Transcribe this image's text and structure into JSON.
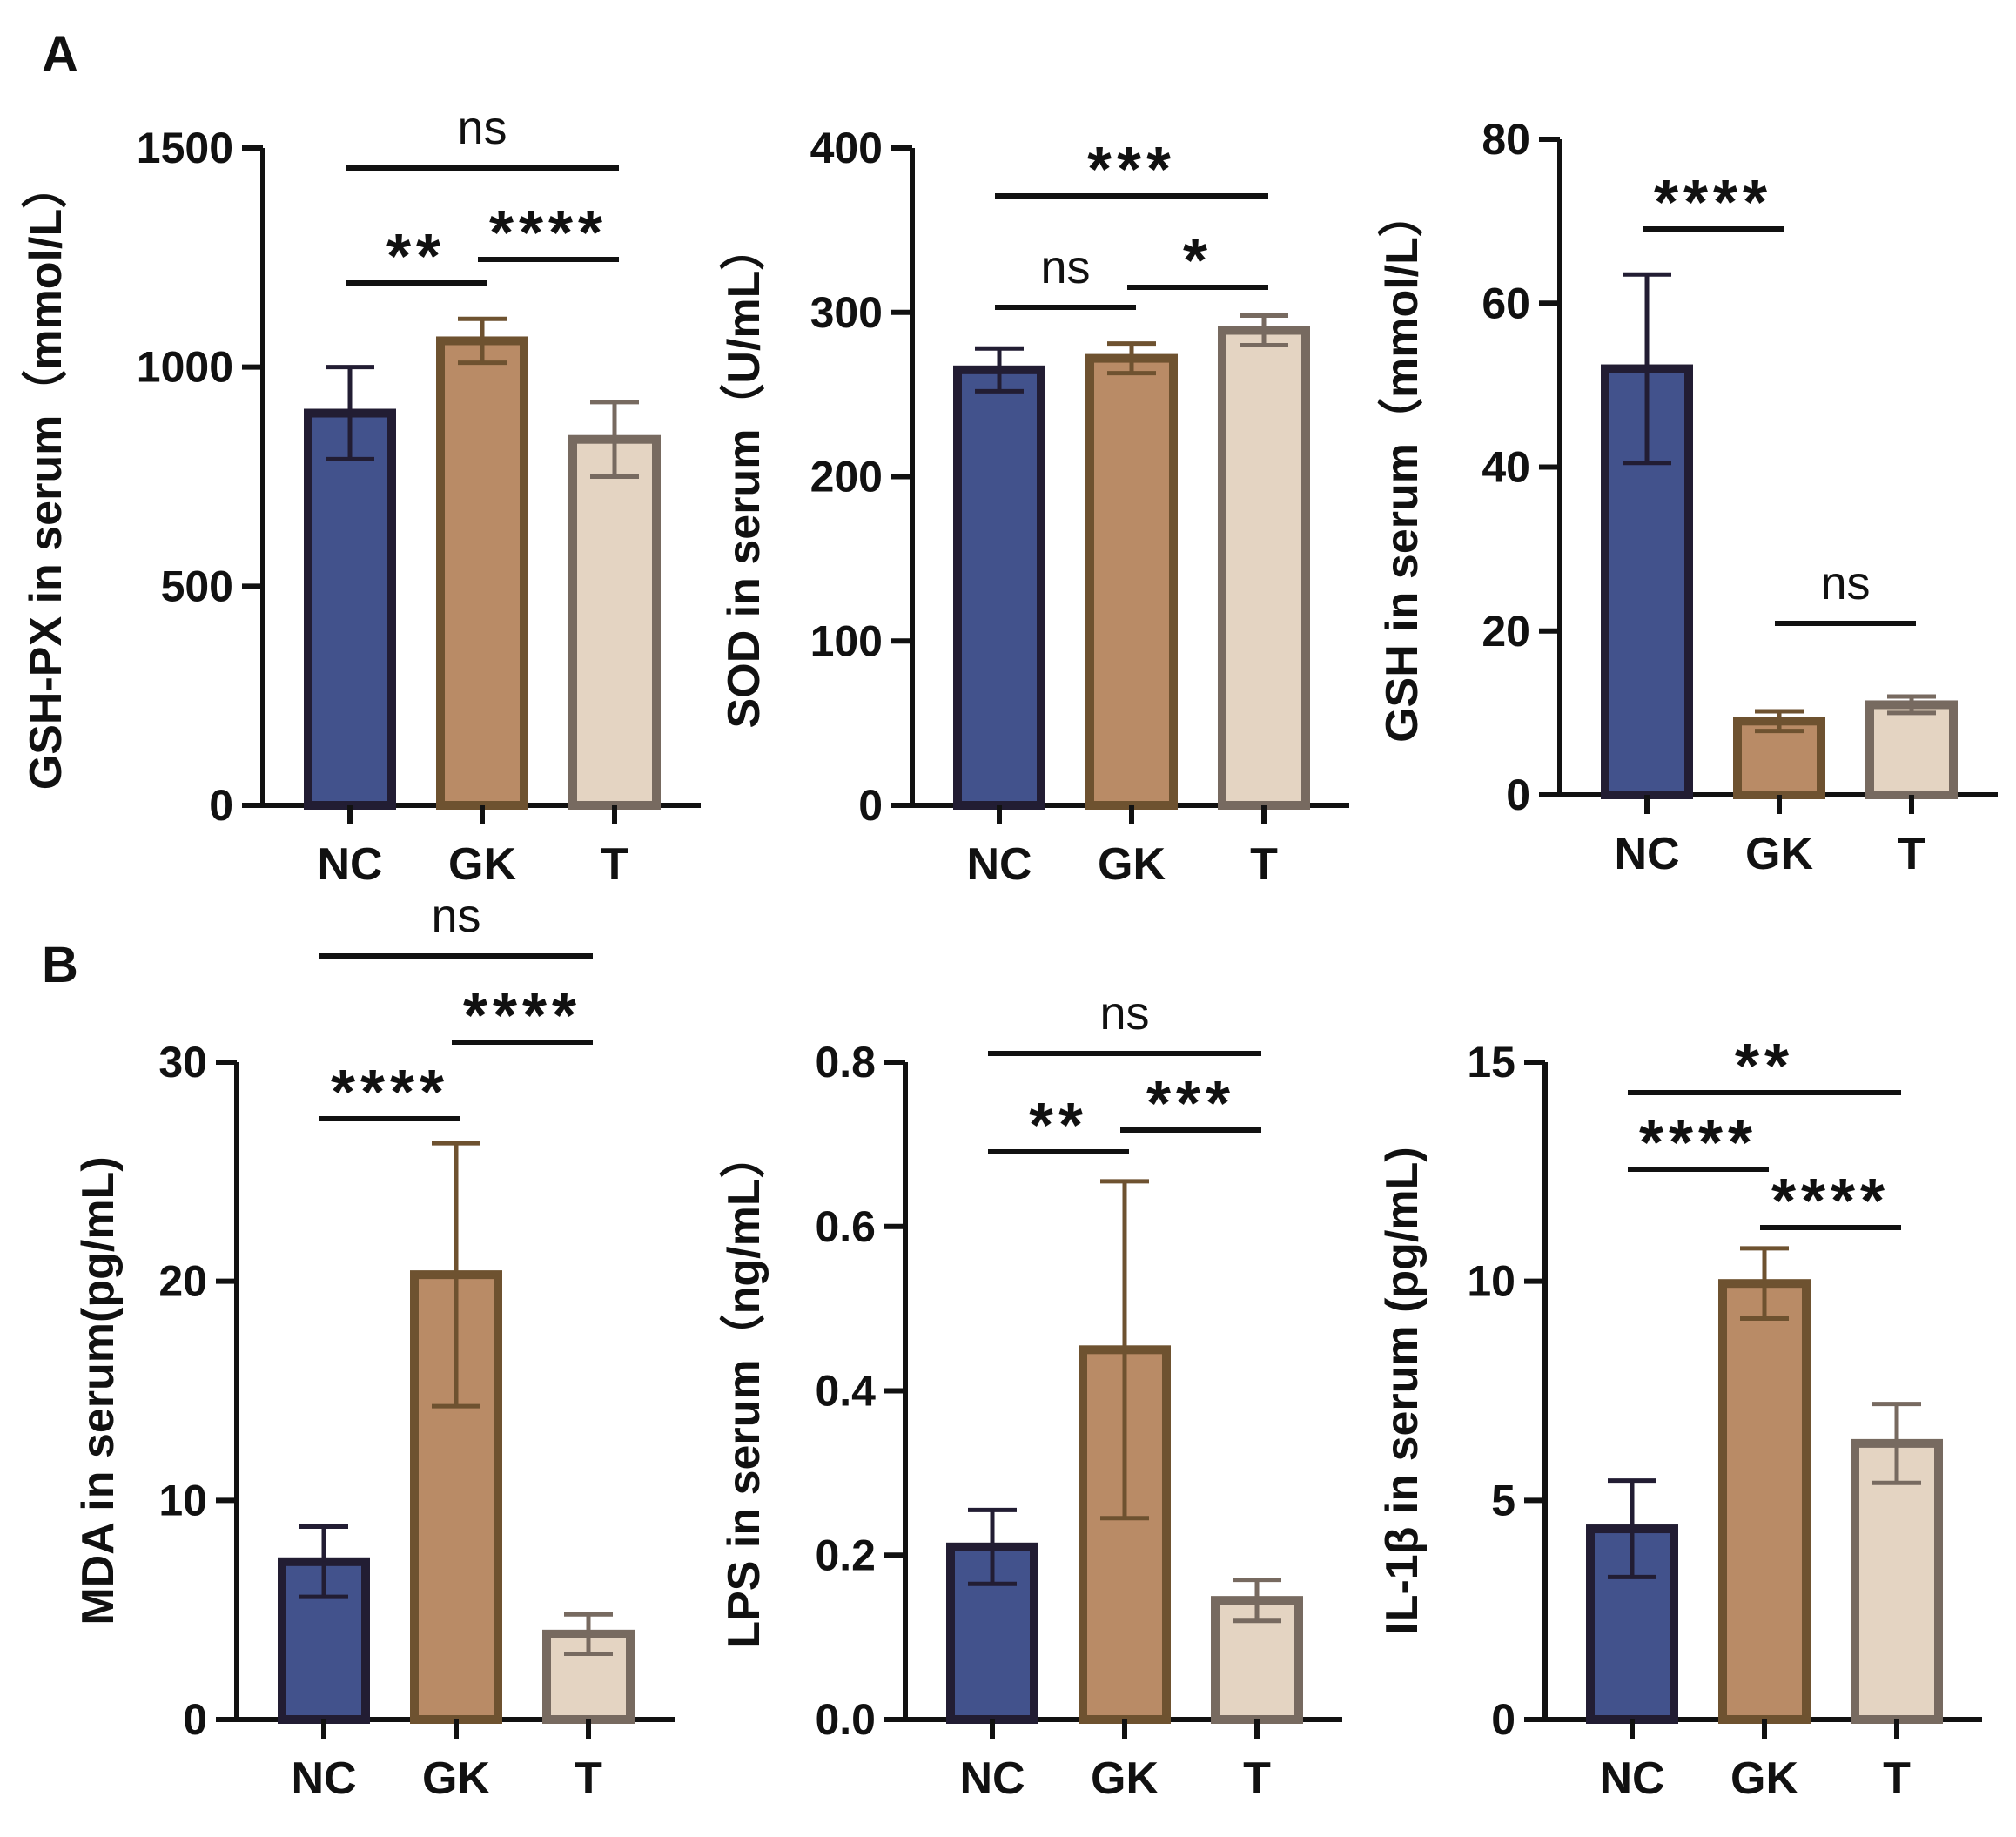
{
  "panels": [
    {
      "label": "A"
    },
    {
      "label": "B"
    }
  ],
  "colors": {
    "NC": {
      "fill": "#42528c",
      "stroke": "#221d33"
    },
    "GK": {
      "fill": "#b98b66",
      "stroke": "#6e5230"
    },
    "T": {
      "fill": "#e4d4c2",
      "stroke": "#776a60"
    },
    "axis": "#111111"
  },
  "chart_data": [
    {
      "type": "bar",
      "ylabel": "GSH-PX in serum（mmol/L）",
      "categories": [
        "NC",
        "GK",
        "T"
      ],
      "values": [
        895,
        1060,
        835
      ],
      "errors": [
        105,
        50,
        85
      ],
      "ylim": [
        0,
        1500
      ],
      "yticks": [
        0,
        500,
        1000,
        1500
      ],
      "significance": [
        {
          "from": "NC",
          "to": "GK",
          "label": "**"
        },
        {
          "from": "GK",
          "to": "T",
          "label": "****"
        },
        {
          "from": "NC",
          "to": "T",
          "label": "ns"
        }
      ]
    },
    {
      "type": "bar",
      "ylabel": "SOD in serum（U/mL）",
      "categories": [
        "NC",
        "GK",
        "T"
      ],
      "values": [
        265,
        272,
        289
      ],
      "errors": [
        13,
        9,
        9
      ],
      "ylim": [
        0,
        400
      ],
      "yticks": [
        0,
        100,
        200,
        300,
        400
      ],
      "significance": [
        {
          "from": "NC",
          "to": "GK",
          "label": "ns"
        },
        {
          "from": "GK",
          "to": "T",
          "label": "*"
        },
        {
          "from": "NC",
          "to": "T",
          "label": "***"
        }
      ]
    },
    {
      "type": "bar",
      "ylabel": "GSH in serum（mmol/L）",
      "categories": [
        "NC",
        "GK",
        "T"
      ],
      "values": [
        52,
        9,
        11
      ],
      "errors": [
        11.5,
        1.2,
        1.0
      ],
      "ylim": [
        0,
        80
      ],
      "yticks": [
        0,
        20,
        40,
        60,
        80
      ],
      "significance": [
        {
          "from": "NC",
          "to": "GK",
          "label": "****"
        },
        {
          "from": "GK",
          "to": "T",
          "label": "ns"
        }
      ]
    },
    {
      "type": "bar",
      "ylabel": "MDA in serum(pg/mL)",
      "categories": [
        "NC",
        "GK",
        "T"
      ],
      "values": [
        7.2,
        20.3,
        3.9
      ],
      "errors": [
        1.6,
        6.0,
        0.9
      ],
      "ylim": [
        0,
        30
      ],
      "yticks": [
        0,
        10,
        20,
        30
      ],
      "significance": [
        {
          "from": "NC",
          "to": "GK",
          "label": "****"
        },
        {
          "from": "GK",
          "to": "T",
          "label": "****"
        },
        {
          "from": "NC",
          "to": "T",
          "label": "ns"
        }
      ]
    },
    {
      "type": "bar",
      "ylabel": "LPS in serum（ng/mL）",
      "categories": [
        "NC",
        "GK",
        "T"
      ],
      "values": [
        0.21,
        0.45,
        0.145
      ],
      "errors": [
        0.045,
        0.205,
        0.025
      ],
      "ylim": [
        0,
        0.8
      ],
      "yticks": [
        "0.0",
        "0.2",
        "0.4",
        "0.6",
        "0.8"
      ],
      "significance": [
        {
          "from": "NC",
          "to": "GK",
          "label": "**"
        },
        {
          "from": "GK",
          "to": "T",
          "label": "***"
        },
        {
          "from": "NC",
          "to": "T",
          "label": "ns"
        }
      ]
    },
    {
      "type": "bar",
      "ylabel": "IL-1β in serum (pg/mL)",
      "categories": [
        "NC",
        "GK",
        "T"
      ],
      "values": [
        4.35,
        9.95,
        6.3
      ],
      "errors": [
        1.1,
        0.8,
        0.9
      ],
      "ylim": [
        0,
        15
      ],
      "yticks": [
        0,
        5,
        10,
        15
      ],
      "significance": [
        {
          "from": "NC",
          "to": "GK",
          "label": "****"
        },
        {
          "from": "GK",
          "to": "T",
          "label": "****"
        },
        {
          "from": "NC",
          "to": "T",
          "label": "**"
        }
      ]
    }
  ]
}
